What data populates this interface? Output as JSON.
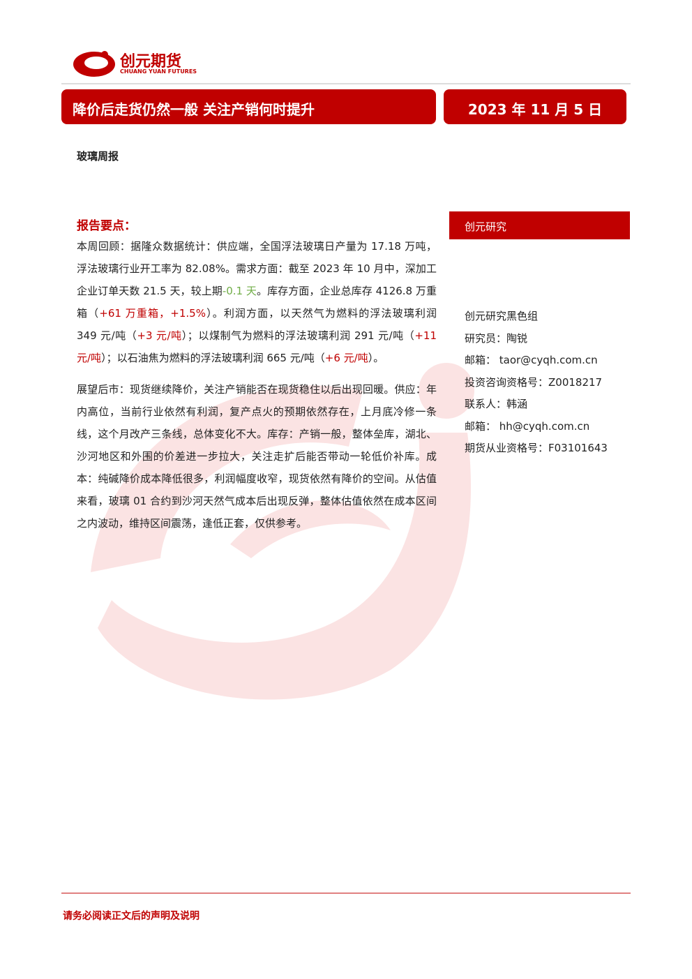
{
  "header": {
    "logo": {
      "name": "创元期货",
      "name_en": "CHUANG YUAN FUTURES"
    },
    "title": "降价后走货仍然一般 关注产销何时提升",
    "date": "2023 年 11 月 5 日"
  },
  "report_type": "玻璃周报",
  "key_points": {
    "heading": "报告要点：",
    "paragraphs": [
      [
        {
          "text": "本周回顾：据隆众数据统计：供应端，全国浮法玻璃日产量为 17.18 万吨，浮法玻璃行业开工率为 82.08%。需求方面：截至 2023 年 10 月中，深加工企业订单天数 21.5 天，较上期"
        },
        {
          "text": "-0.1 天",
          "color": "#70ad47"
        },
        {
          "text": "。库存方面，企业总库存 4126.8 万重箱（"
        },
        {
          "text": "+61 万重箱，+1.5%",
          "color": "#c00000"
        },
        {
          "text": "）。利润方面，以天然气为燃料的浮法玻璃利润 349 元/吨（"
        },
        {
          "text": "+3 元/吨",
          "color": "#c00000"
        },
        {
          "text": "）；以煤制气为燃料的浮法玻璃利润 291 元/吨（"
        },
        {
          "text": "+11 元/吨",
          "color": "#c00000"
        },
        {
          "text": "）；以石油焦为燃料的浮法玻璃利润 665 元/吨（"
        },
        {
          "text": "+6 元/吨",
          "color": "#c00000"
        },
        {
          "text": "）。"
        }
      ],
      [
        {
          "text": "展望后市：现货继续降价，关注产销能否在现货稳住以后出现回暖。供应：年内高位，当前行业依然有利润，复产点火的预期依然存在，上月底冷修一条线，这个月改产三条线，总体变化不大。库存：产销一般，整体垒库，湖北、沙河地区和外围的价差进一步拉大，关注走扩后能否带动一轮低价补库。成本：纯碱降价成本降低很多，利润幅度收窄，现货依然有降价的空间。从估值来看，玻璃 01 合约到沙河天然气成本后出现反弹，整体估值依然在成本区间之内波动，维持区间震荡，逢低正套，仅供参考。"
        }
      ]
    ]
  },
  "sidebar": {
    "heading": "创元研究",
    "contacts": [
      "创元研究黑色组",
      "研究员：陶锐",
      "邮箱： taor@cyqh.com.cn",
      "投资咨询资格号：Z0018217",
      "联系人：韩涵",
      "邮箱： hh@cyqh.com.cn",
      "期货从业资格号：F03101643"
    ]
  },
  "footer": "请务必阅读正文后的声明及说明"
}
